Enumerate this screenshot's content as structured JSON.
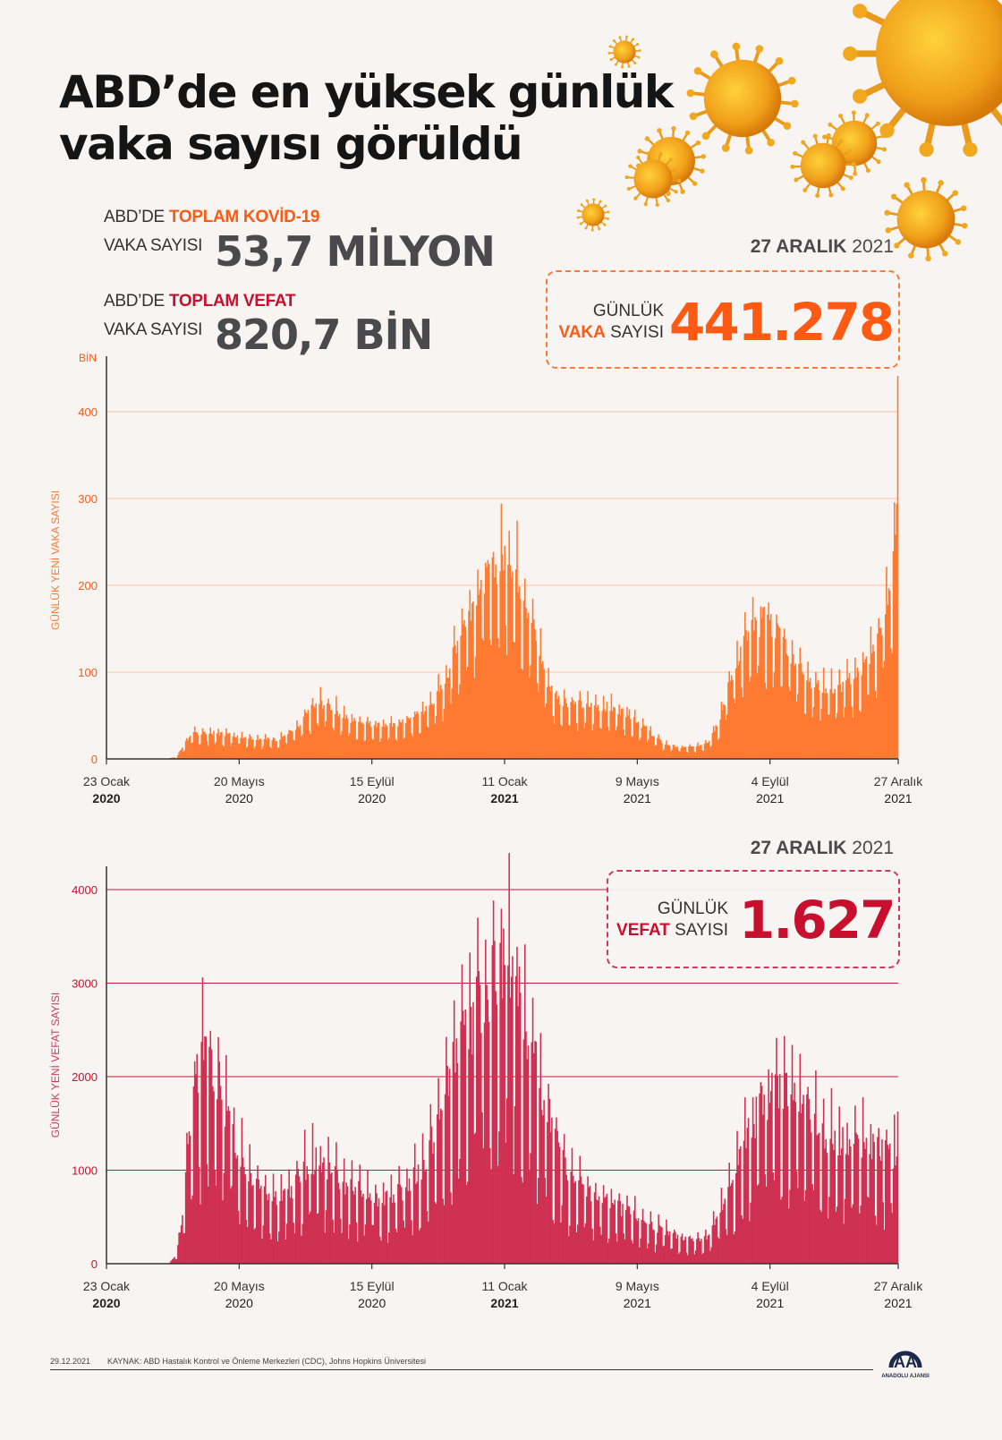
{
  "title": {
    "line1": "ABD’de en yüksek günlük",
    "line2": "vaka sayısı görüldü"
  },
  "totals": {
    "cases": {
      "prefix": "ABD’DE",
      "highlight": "TOPLAM KOVİD-19",
      "label2": "VAKA SAYISI",
      "value": "53,7 MİLYON"
    },
    "deaths": {
      "prefix": "ABD’DE",
      "highlight": "TOPLAM VEFAT",
      "label2": "VAKA SAYISI",
      "value": "820,7 BİN"
    }
  },
  "colors": {
    "cases": "#ff7a30",
    "cases_text": "#ff5a14",
    "deaths": "#cf3052",
    "deaths_text": "#c8102e",
    "grid_cases": "#ffc2a0",
    "grid_deaths": "#c8173e"
  },
  "cases_callout": {
    "date_bold": "27 ARALIK",
    "date_year": "2021",
    "line1": "GÜNLÜK",
    "line2_highlight": "VAKA",
    "line2_rest": "SAYISI",
    "value": "441.278"
  },
  "deaths_callout": {
    "date_bold": "27 ARALIK",
    "date_year": "2021",
    "line1": "GÜNLÜK",
    "line2_highlight": "VEFAT",
    "line2_rest": "SAYISI",
    "value": "1.627"
  },
  "x_ticks": [
    {
      "day": "23 Ocak",
      "year": "2020",
      "bold": true
    },
    {
      "day": "20 Mayıs",
      "year": "2020",
      "bold": false
    },
    {
      "day": "15 Eylül",
      "year": "2020",
      "bold": false
    },
    {
      "day": "11 Ocak",
      "year": "2021",
      "bold": true
    },
    {
      "day": "9 Mayıs",
      "year": "2021",
      "bold": false
    },
    {
      "day": "4 Eylül",
      "year": "2021",
      "bold": false
    },
    {
      "day": "27 Aralık",
      "year": "2021",
      "bold": false
    }
  ],
  "chart_data": [
    {
      "type": "bar",
      "title": "Günlük yeni vaka sayısı (ABD)",
      "xlabel": "",
      "ylabel": "GÜNLÜK YENİ VAKA SAYISI",
      "unit_label": "BİN",
      "x_start": "2020-01-23",
      "x_end": "2021-12-27",
      "num_days": 705,
      "ylim": [
        0,
        450
      ],
      "yticks": [
        0,
        100,
        200,
        300,
        400
      ],
      "grid": true,
      "anchors": [
        [
          0,
          0
        ],
        [
          50,
          0
        ],
        [
          62,
          2
        ],
        [
          70,
          20
        ],
        [
          78,
          30
        ],
        [
          90,
          30
        ],
        [
          110,
          28
        ],
        [
          130,
          24
        ],
        [
          150,
          22
        ],
        [
          170,
          35
        ],
        [
          180,
          55
        ],
        [
          190,
          65
        ],
        [
          200,
          60
        ],
        [
          215,
          45
        ],
        [
          235,
          40
        ],
        [
          255,
          38
        ],
        [
          270,
          45
        ],
        [
          285,
          58
        ],
        [
          300,
          85
        ],
        [
          310,
          130
        ],
        [
          320,
          165
        ],
        [
          330,
          195
        ],
        [
          340,
          210
        ],
        [
          350,
          225
        ],
        [
          355,
          240
        ],
        [
          362,
          225
        ],
        [
          372,
          185
        ],
        [
          382,
          140
        ],
        [
          392,
          90
        ],
        [
          400,
          70
        ],
        [
          420,
          62
        ],
        [
          445,
          60
        ],
        [
          465,
          52
        ],
        [
          480,
          35
        ],
        [
          495,
          18
        ],
        [
          510,
          13
        ],
        [
          525,
          14
        ],
        [
          535,
          20
        ],
        [
          545,
          45
        ],
        [
          555,
          90
        ],
        [
          565,
          130
        ],
        [
          575,
          150
        ],
        [
          585,
          160
        ],
        [
          595,
          150
        ],
        [
          605,
          130
        ],
        [
          615,
          110
        ],
        [
          630,
          85
        ],
        [
          650,
          80
        ],
        [
          670,
          100
        ],
        [
          685,
          130
        ],
        [
          695,
          180
        ],
        [
          700,
          240
        ],
        [
          703,
          270
        ]
      ],
      "weekly_amplitude_ratio": 0.25,
      "last_value": 441.278
    },
    {
      "type": "bar",
      "title": "Günlük yeni vefat sayısı (ABD)",
      "xlabel": "",
      "ylabel": "GÜNLÜK YENİ VEFAT SAYISI",
      "x_start": "2020-01-23",
      "x_end": "2021-12-27",
      "num_days": 705,
      "ylim": [
        0,
        4200
      ],
      "yticks": [
        0,
        1000,
        2000,
        3000,
        4000
      ],
      "grid": true,
      "anchors": [
        [
          0,
          0
        ],
        [
          55,
          0
        ],
        [
          62,
          100
        ],
        [
          68,
          600
        ],
        [
          74,
          1500
        ],
        [
          80,
          2000
        ],
        [
          87,
          2250
        ],
        [
          95,
          2100
        ],
        [
          105,
          1700
        ],
        [
          115,
          1300
        ],
        [
          125,
          1000
        ],
        [
          140,
          800
        ],
        [
          155,
          700
        ],
        [
          165,
          800
        ],
        [
          175,
          1000
        ],
        [
          185,
          1100
        ],
        [
          195,
          1050
        ],
        [
          205,
          900
        ],
        [
          220,
          800
        ],
        [
          240,
          700
        ],
        [
          260,
          750
        ],
        [
          280,
          1000
        ],
        [
          295,
          1500
        ],
        [
          310,
          2200
        ],
        [
          325,
          2600
        ],
        [
          340,
          3000
        ],
        [
          350,
          3200
        ],
        [
          357,
          3300
        ],
        [
          365,
          2900
        ],
        [
          380,
          2200
        ],
        [
          395,
          1500
        ],
        [
          410,
          950
        ],
        [
          430,
          750
        ],
        [
          455,
          600
        ],
        [
          480,
          450
        ],
        [
          500,
          320
        ],
        [
          520,
          250
        ],
        [
          535,
          300
        ],
        [
          550,
          650
        ],
        [
          565,
          1200
        ],
        [
          580,
          1650
        ],
        [
          595,
          1900
        ],
        [
          610,
          1850
        ],
        [
          625,
          1550
        ],
        [
          640,
          1350
        ],
        [
          660,
          1300
        ],
        [
          680,
          1250
        ],
        [
          700,
          1150
        ],
        [
          704,
          1200
        ]
      ],
      "weekly_amplitude_ratio": 0.35,
      "last_value": 1627
    }
  ],
  "footer": {
    "date": "29.12.2021",
    "source": "KAYNAK: ABD Hastalık Kontrol ve Önleme Merkezleri (CDC), Johns Hopkins Üniversitesi",
    "logo_text": "AA",
    "logo_caption": "ANADOLU AJANSI"
  }
}
